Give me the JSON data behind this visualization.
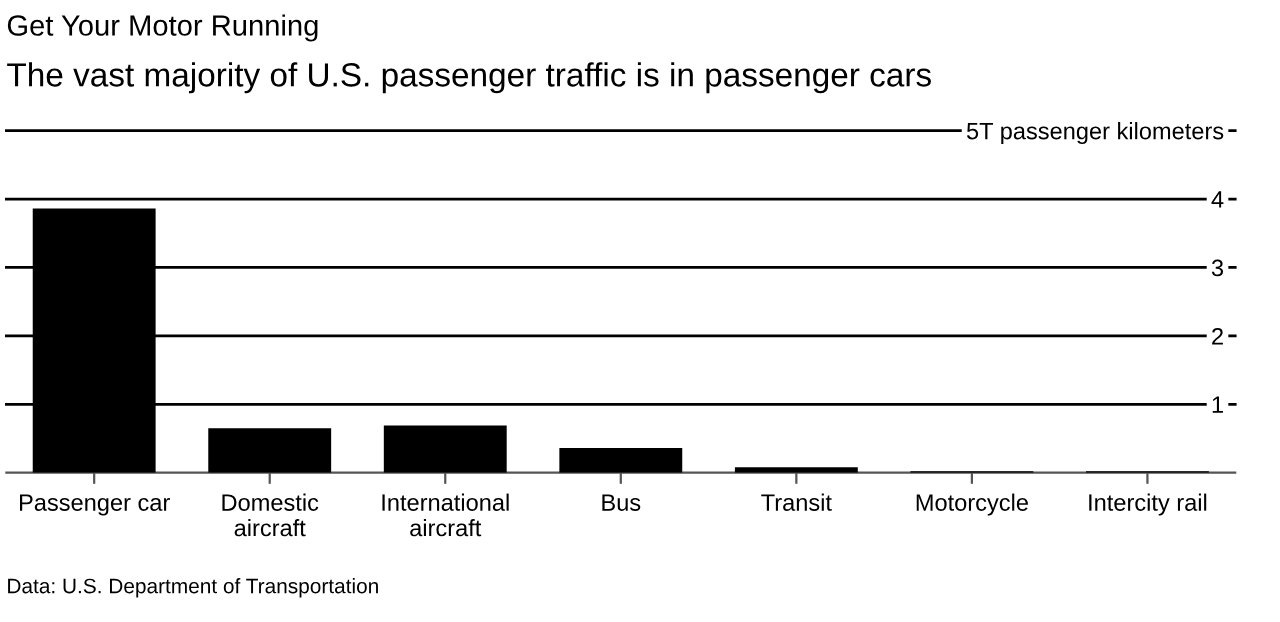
{
  "chart_data": {
    "type": "bar",
    "title": "Get Your Motor Running",
    "subtitle": "The vast majority of U.S. passenger traffic is in passenger cars",
    "categories": [
      "Passenger car",
      "Domestic\naircraft",
      "International\naircraft",
      "Bus",
      "Transit",
      "Motorcycle",
      "Intercity rail"
    ],
    "values": [
      3.86,
      0.65,
      0.69,
      0.36,
      0.08,
      0.02,
      0.02
    ],
    "color": "#000000",
    "ylim": [
      0,
      5
    ],
    "yticks": [
      {
        "value": 1,
        "label": "1"
      },
      {
        "value": 2,
        "label": "2"
      },
      {
        "value": 3,
        "label": "3"
      },
      {
        "value": 4,
        "label": "4"
      },
      {
        "value": 5,
        "label": "5T passenger kilometers"
      }
    ],
    "grid": "y",
    "annotations": [
      "Data: U.S. Department of Transportation"
    ]
  }
}
